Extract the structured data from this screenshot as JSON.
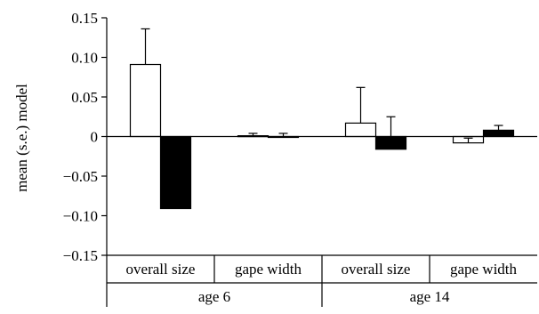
{
  "chart_data": {
    "type": "bar",
    "title": "",
    "xlabel": "",
    "ylabel": "mean (s.e.) model",
    "ylim": [
      -0.15,
      0.15
    ],
    "yticks": [
      0.15,
      0.1,
      0.05,
      0,
      -0.05,
      -0.1,
      -0.15
    ],
    "ytick_labels": [
      "0.15",
      "0.10",
      "0.05",
      "0",
      "−0.05",
      "−0.10",
      "−0.15"
    ],
    "categories": [
      "overall size",
      "gape width",
      "overall size",
      "gape width"
    ],
    "groups": [
      {
        "label": "age 6",
        "span": [
          0,
          1
        ]
      },
      {
        "label": "age 14",
        "span": [
          2,
          3
        ]
      }
    ],
    "series": [
      {
        "fill": "#ffffff",
        "values": [
          0.091,
          0.001,
          0.017,
          -0.008
        ],
        "errors": [
          0.045,
          0.003,
          0.045,
          0.006
        ]
      },
      {
        "fill": "#000000",
        "values": [
          -0.091,
          0.0,
          -0.016,
          0.008
        ],
        "errors": [
          0.063,
          0.004,
          0.041,
          0.006
        ]
      }
    ],
    "grid": false,
    "legend": "none"
  }
}
